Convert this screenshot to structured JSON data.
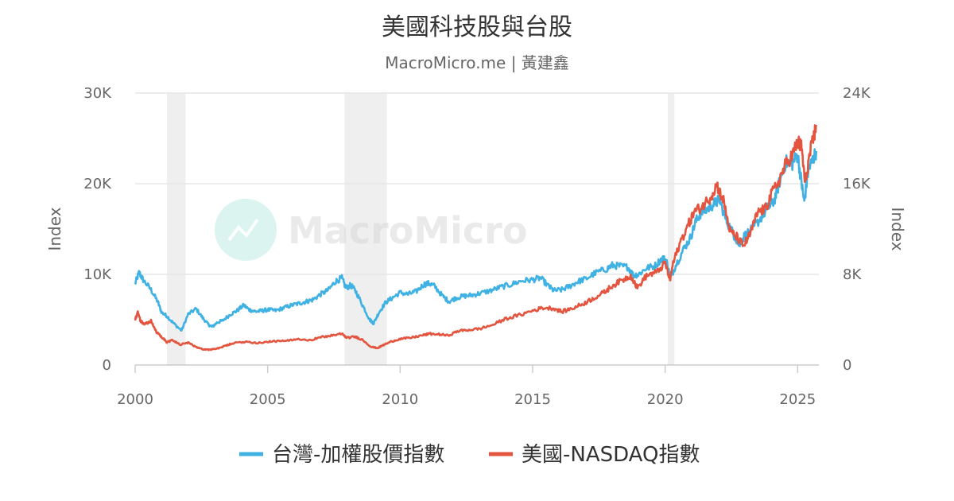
{
  "chart_data": {
    "type": "line",
    "title": "美國科技股與台股",
    "subtitle": "MacroMicro.me | 黃建鑫",
    "watermark": "MacroMicro",
    "x_axis": {
      "range": [
        2000,
        2025.8
      ],
      "ticks": [
        "2000",
        "2005",
        "2010",
        "2015",
        "2020",
        "2025"
      ]
    },
    "y_axis_left": {
      "label": "Index",
      "range": [
        0,
        30000
      ],
      "ticks": [
        "0",
        "10K",
        "20K",
        "30K"
      ]
    },
    "y_axis_right": {
      "label": "Index",
      "range": [
        0,
        24000
      ],
      "ticks": [
        "0",
        "8K",
        "16K",
        "24K"
      ]
    },
    "grid": true,
    "legend_position": "bottom",
    "recession_bands": [
      [
        2001.2,
        2001.9
      ],
      [
        2007.9,
        2009.5
      ],
      [
        2020.1,
        2020.35
      ]
    ],
    "series": [
      {
        "name": "台灣-加權股價指數",
        "axis": "left",
        "color": "#3fb1e3",
        "x": [
          2000.0,
          2000.15,
          2000.3,
          2000.6,
          2000.85,
          2001.0,
          2001.2,
          2001.45,
          2001.75,
          2002.0,
          2002.3,
          2002.55,
          2002.75,
          2002.9,
          2003.1,
          2003.3,
          2003.6,
          2003.85,
          2004.1,
          2004.3,
          2004.55,
          2004.8,
          2005.0,
          2005.3,
          2005.6,
          2005.9,
          2006.2,
          2006.45,
          2006.7,
          2007.0,
          2007.3,
          2007.55,
          2007.8,
          2007.95,
          2008.15,
          2008.35,
          2008.6,
          2008.85,
          2009.0,
          2009.2,
          2009.45,
          2009.7,
          2010.0,
          2010.3,
          2010.6,
          2010.9,
          2011.1,
          2011.3,
          2011.6,
          2011.85,
          2012.1,
          2012.4,
          2012.7,
          2013.0,
          2013.4,
          2013.8,
          2014.2,
          2014.6,
          2015.0,
          2015.3,
          2015.6,
          2015.8,
          2016.1,
          2016.4,
          2016.7,
          2017.0,
          2017.4,
          2017.8,
          2018.0,
          2018.3,
          2018.6,
          2018.8,
          2019.0,
          2019.3,
          2019.6,
          2019.9,
          2020.05,
          2020.2,
          2020.4,
          2020.7,
          2020.95,
          2021.15,
          2021.35,
          2021.6,
          2021.85,
          2022.05,
          2022.3,
          2022.55,
          2022.8,
          2023.0,
          2023.3,
          2023.6,
          2023.9,
          2024.1,
          2024.3,
          2024.55,
          2024.8,
          2025.0,
          2025.15,
          2025.25,
          2025.4,
          2025.55,
          2025.7
        ],
        "values": [
          9000,
          10200,
          9400,
          8300,
          7000,
          5800,
          5400,
          4600,
          3800,
          5600,
          6200,
          5200,
          4500,
          4200,
          4700,
          4900,
          5600,
          6000,
          6600,
          6100,
          5900,
          6000,
          6100,
          6000,
          6300,
          6600,
          6800,
          7000,
          7200,
          7800,
          8300,
          9200,
          9600,
          8500,
          8800,
          8000,
          6500,
          5000,
          4600,
          5800,
          6900,
          7400,
          8000,
          7800,
          8100,
          8900,
          9000,
          8700,
          7600,
          7000,
          7400,
          7600,
          7700,
          7900,
          8200,
          8600,
          8900,
          9300,
          9400,
          9600,
          8700,
          8200,
          8300,
          8700,
          9200,
          9500,
          10200,
          10600,
          11000,
          10900,
          10800,
          9900,
          10000,
          10700,
          10900,
          11800,
          11500,
          9600,
          11000,
          12800,
          14000,
          15800,
          16800,
          17200,
          17800,
          18200,
          16000,
          14600,
          13200,
          14300,
          15000,
          16200,
          17400,
          18000,
          20000,
          22400,
          22200,
          23200,
          20000,
          18000,
          21500,
          22500,
          23600
        ]
      },
      {
        "name": "美國-NASDAQ指數",
        "axis": "right",
        "color": "#e3553f",
        "x": [
          2000.0,
          2000.1,
          2000.2,
          2000.35,
          2000.6,
          2000.8,
          2001.0,
          2001.2,
          2001.4,
          2001.7,
          2002.0,
          2002.3,
          2002.55,
          2002.8,
          2003.0,
          2003.3,
          2003.6,
          2003.9,
          2004.2,
          2004.6,
          2005.0,
          2005.4,
          2005.8,
          2006.2,
          2006.6,
          2007.0,
          2007.4,
          2007.8,
          2008.0,
          2008.3,
          2008.6,
          2008.9,
          2009.15,
          2009.4,
          2009.7,
          2010.0,
          2010.4,
          2010.8,
          2011.1,
          2011.5,
          2011.8,
          2012.2,
          2012.6,
          2013.0,
          2013.5,
          2014.0,
          2014.5,
          2015.0,
          2015.4,
          2015.8,
          2016.1,
          2016.5,
          2016.9,
          2017.3,
          2017.7,
          2018.0,
          2018.4,
          2018.7,
          2018.95,
          2019.3,
          2019.7,
          2020.0,
          2020.18,
          2020.3,
          2020.6,
          2020.9,
          2021.1,
          2021.4,
          2021.7,
          2021.95,
          2022.2,
          2022.45,
          2022.7,
          2022.95,
          2023.2,
          2023.5,
          2023.8,
          2024.0,
          2024.3,
          2024.55,
          2024.8,
          2025.0,
          2025.15,
          2025.28,
          2025.45,
          2025.6,
          2025.7
        ],
        "values": [
          4000,
          4700,
          3900,
          3600,
          3900,
          2900,
          2500,
          2000,
          2200,
          1800,
          1950,
          1600,
          1400,
          1350,
          1400,
          1600,
          1850,
          2000,
          2050,
          1950,
          2050,
          2100,
          2150,
          2300,
          2200,
          2450,
          2600,
          2750,
          2400,
          2500,
          2200,
          1600,
          1500,
          1800,
          2100,
          2300,
          2400,
          2600,
          2750,
          2700,
          2600,
          3000,
          3100,
          3200,
          3550,
          4100,
          4400,
          4800,
          5050,
          5000,
          4700,
          5000,
          5400,
          5900,
          6400,
          7000,
          7500,
          7900,
          6800,
          7900,
          8200,
          9000,
          7500,
          9000,
          11000,
          12500,
          13500,
          14000,
          14800,
          15900,
          14500,
          11800,
          11300,
          10500,
          11500,
          13500,
          13800,
          15000,
          16300,
          17700,
          18500,
          19700,
          19200,
          16000,
          18500,
          20000,
          21200
        ]
      }
    ]
  }
}
